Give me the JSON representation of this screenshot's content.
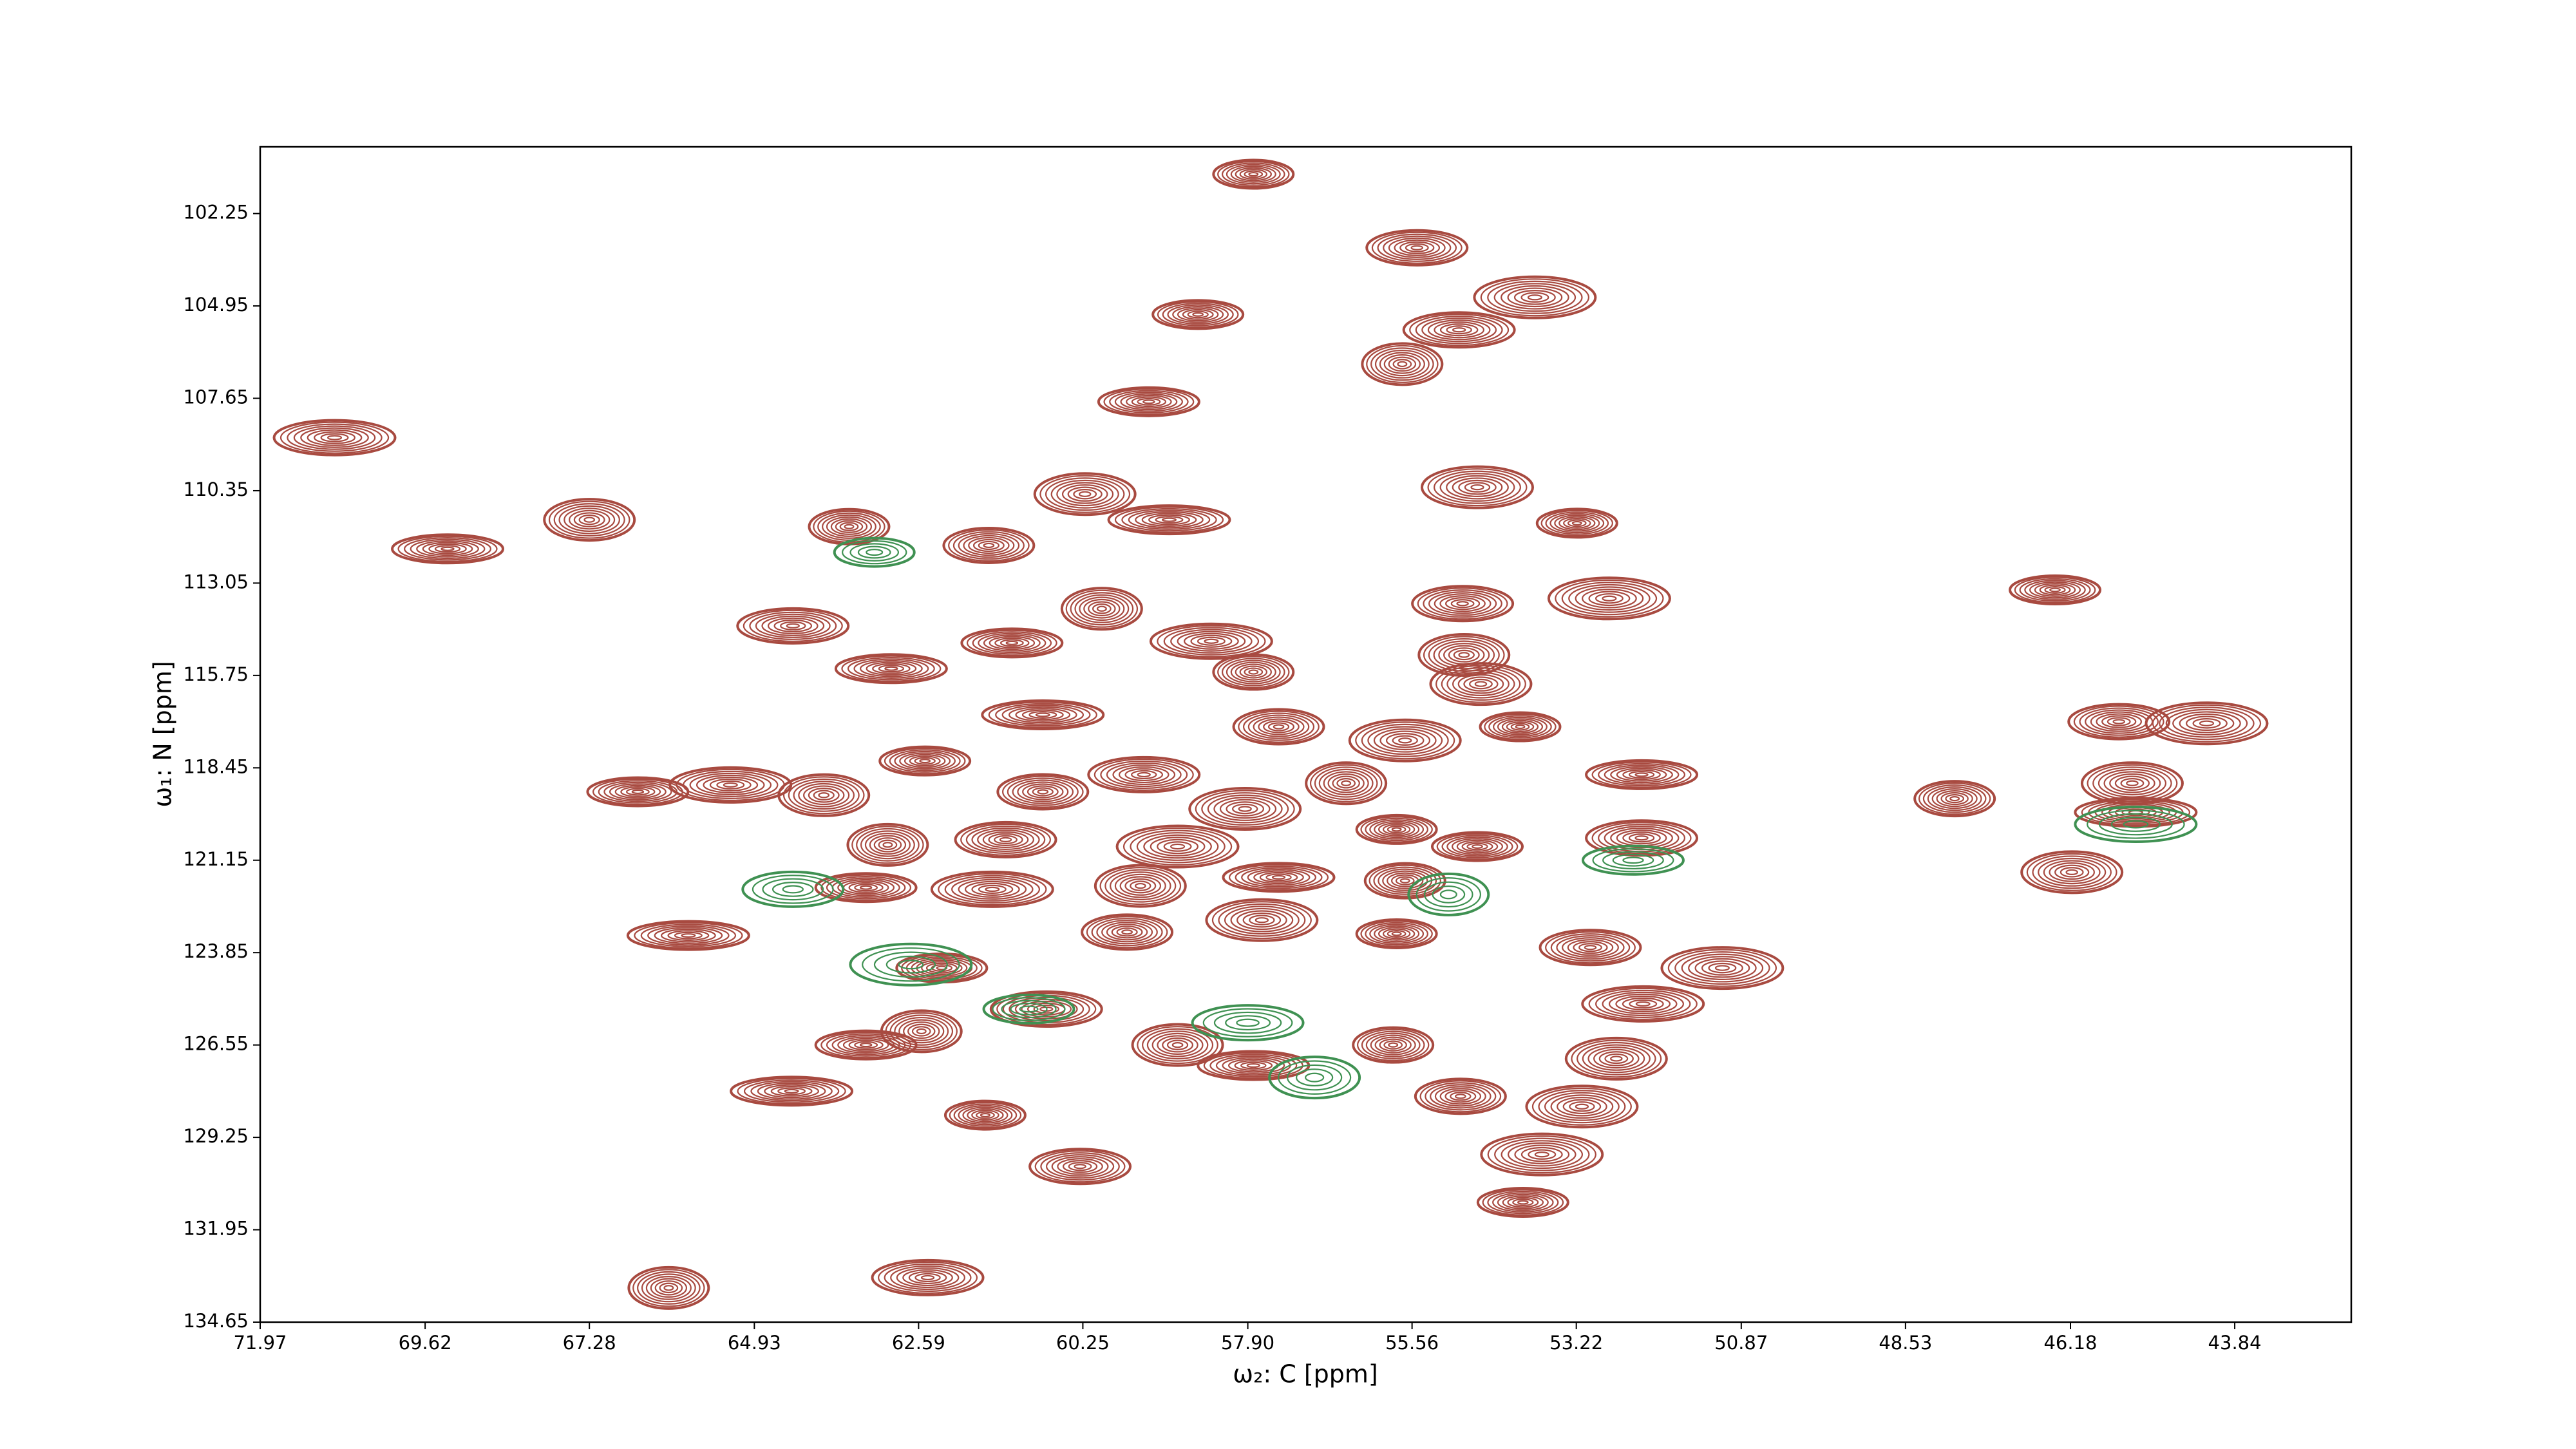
{
  "chart_data": {
    "type": "contour",
    "x_label": "ω₂: C [ppm]",
    "y_label": "ω₁: N [ppm]",
    "xlim": [
      71.97,
      42.18
    ],
    "ylim": [
      134.65,
      100.3
    ],
    "xticks": [
      71.97,
      69.62,
      67.28,
      64.93,
      62.59,
      60.25,
      {
        "value": 57.9,
        "label": "57.90"
      },
      55.56,
      53.22,
      50.87,
      48.53,
      46.18,
      43.84
    ],
    "yticks": [
      102.25,
      104.95,
      107.65,
      110.35,
      113.05,
      115.75,
      118.45,
      121.15,
      123.85,
      126.55,
      129.25,
      131.95,
      134.65
    ],
    "series": [
      {
        "color": "#a84a40",
        "x": [
          57.82,
          55.49,
          53.81,
          58.61,
          54.89,
          55.7,
          59.31,
          70.91,
          67.28,
          69.3,
          63.58,
          60.22,
          59.02,
          61.59,
          54.63,
          53.21,
          54.84,
          52.75,
          46.4,
          64.38,
          59.98,
          61.26,
          58.42,
          54.82,
          62.98,
          57.82,
          54.58,
          60.82,
          57.46,
          55.66,
          54.02,
          45.49,
          44.24,
          62.5,
          59.38,
          56.5,
          66.59,
          65.27,
          63.94,
          52.29,
          47.83,
          45.3,
          45.25,
          60.82,
          57.94,
          55.78,
          61.35,
          58.9,
          54.63,
          52.29,
          63.03,
          63.34,
          61.54,
          59.43,
          57.46,
          55.66,
          46.16,
          65.87,
          59.62,
          57.7,
          55.78,
          53.02,
          51.14,
          62.26,
          60.77,
          62.55,
          63.34,
          52.27,
          58.9,
          57.82,
          55.83,
          52.65,
          64.4,
          54.87,
          53.14,
          61.64,
          60.29,
          53.71,
          53.98,
          62.46,
          66.15
        ],
        "y": [
          101.1,
          103.25,
          104.7,
          105.2,
          105.65,
          106.65,
          107.75,
          108.8,
          111.2,
          112.05,
          111.4,
          110.45,
          111.2,
          111.95,
          110.25,
          111.3,
          113.65,
          113.5,
          113.25,
          114.3,
          113.8,
          114.8,
          114.75,
          115.15,
          115.55,
          115.65,
          116.0,
          116.9,
          117.25,
          117.65,
          117.25,
          117.1,
          117.15,
          118.25,
          118.65,
          118.9,
          119.15,
          118.95,
          119.25,
          118.65,
          119.35,
          118.9,
          119.75,
          119.15,
          119.65,
          120.25,
          120.55,
          120.75,
          120.75,
          120.5,
          120.7,
          121.95,
          122.0,
          121.9,
          121.65,
          121.75,
          121.5,
          123.35,
          123.25,
          122.9,
          123.3,
          123.7,
          124.3,
          124.3,
          125.5,
          126.15,
          126.55,
          125.35,
          126.55,
          127.15,
          126.55,
          126.95,
          127.9,
          128.05,
          128.35,
          128.6,
          130.1,
          129.75,
          131.15,
          133.35,
          133.65
        ]
      },
      {
        "color": "#3f9152",
        "x": [
          63.22,
          64.38,
          62.7,
          61.02,
          57.9,
          55.04,
          52.41,
          45.25,
          56.95
        ],
        "y": [
          112.15,
          122.0,
          124.2,
          125.5,
          125.9,
          122.15,
          121.15,
          120.1,
          127.5
        ]
      }
    ]
  }
}
